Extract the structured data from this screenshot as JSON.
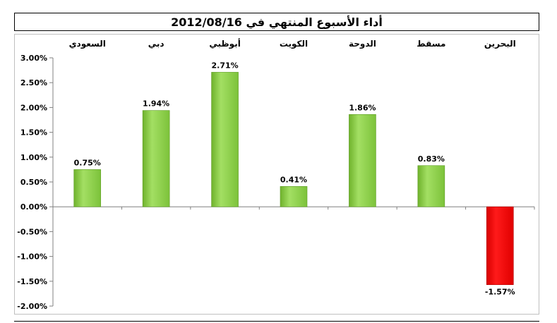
{
  "title": "أداء الأسبوع المنتهي في 2012/08/16",
  "chart_data": {
    "type": "bar",
    "categories": [
      "البحرين",
      "مسقط",
      "الدوحة",
      "الكويت",
      "أبوظبي",
      "دبي",
      "السعودي"
    ],
    "values": [
      -1.57,
      0.83,
      1.86,
      0.41,
      2.71,
      1.94,
      0.75
    ],
    "data_labels": [
      "-1.57%",
      "0.83%",
      "1.86%",
      "0.41%",
      "2.71%",
      "1.94%",
      "0.75%"
    ],
    "ylim": [
      -2.0,
      3.0
    ],
    "yticks": [
      "3.00%",
      "2.50%",
      "2.00%",
      "1.50%",
      "1.00%",
      "0.50%",
      "0.00%",
      "-0.50%",
      "-1.00%",
      "-1.50%",
      "-2.00%"
    ],
    "category_axis_position": "top",
    "category_order": "right-to-left",
    "grid": false,
    "colors": {
      "positive": "#92d050",
      "negative": "#ff0000"
    }
  }
}
